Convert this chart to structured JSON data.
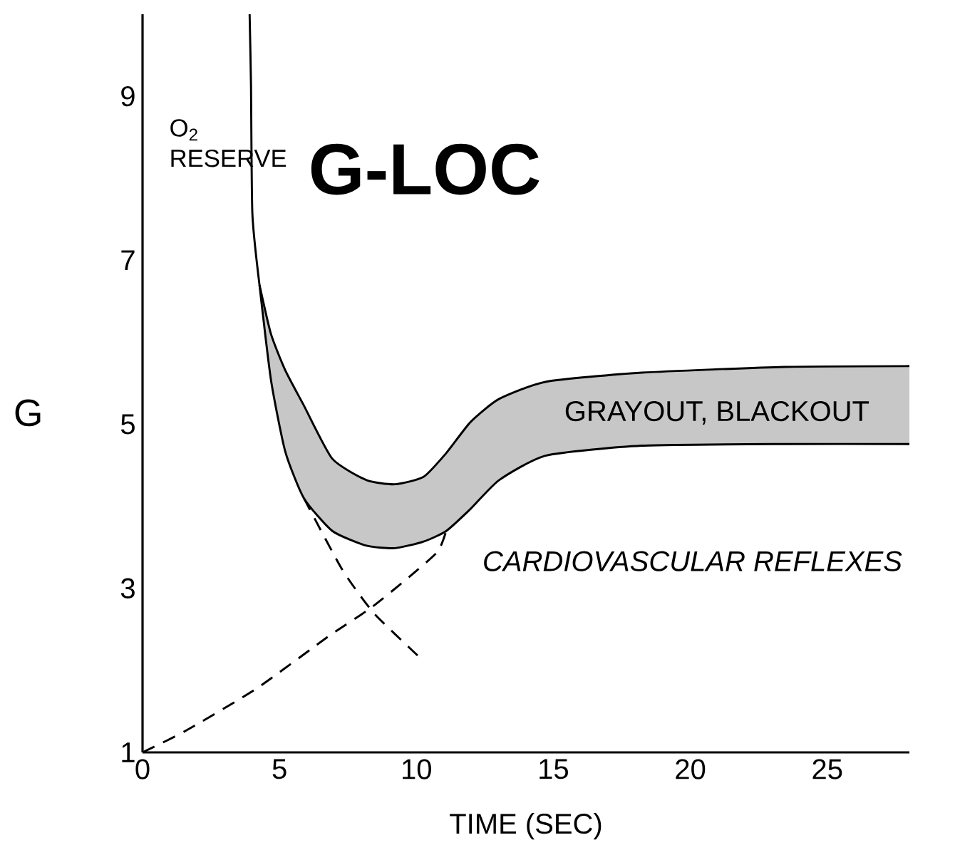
{
  "chart_data": {
    "type": "line",
    "xlabel": "TIME (SEC)",
    "ylabel": "G",
    "xlim": [
      0,
      28
    ],
    "ylim": [
      1,
      10
    ],
    "xticks": [
      0,
      5,
      10,
      15,
      20,
      25
    ],
    "yticks": [
      1,
      3,
      5,
      7,
      9
    ],
    "marker": "none",
    "grid": false,
    "series": [
      {
        "color": "#000000",
        "line_style": "solid",
        "x": [
          3.91,
          3.96,
          4.01,
          4.27
        ],
        "values": [
          10.0,
          9.14,
          7.57,
          6.7
        ]
      },
      {
        "color": "#000000",
        "line_style": "solid",
        "x": [
          4.27,
          4.69,
          5.21,
          5.89,
          6.93,
          8.18,
          9.22,
          10.26,
          11.09,
          11.98,
          13.02,
          14.74,
          18.23,
          23.44,
          28.0
        ],
        "values": [
          6.7,
          6.1,
          5.66,
          5.23,
          4.58,
          4.32,
          4.27,
          4.36,
          4.65,
          5.03,
          5.31,
          5.52,
          5.63,
          5.7,
          5.71
        ],
        "upper": [
          6.7,
          6.1,
          5.66,
          5.23,
          4.58,
          4.32,
          4.27,
          4.36,
          4.65,
          5.03,
          5.31,
          5.52,
          5.63,
          5.7,
          5.71
        ],
        "lower": [
          6.7,
          5.54,
          4.67,
          4.1,
          3.7,
          3.52,
          3.49,
          3.57,
          3.7,
          3.97,
          4.32,
          4.62,
          4.74,
          4.76,
          4.76
        ]
      },
      {
        "color": "#000000",
        "line_style": "solid",
        "x": [
          4.27,
          4.69,
          5.21,
          5.89,
          6.93,
          8.18,
          9.22,
          10.26,
          11.09,
          11.98,
          13.02,
          14.74,
          18.23,
          23.44,
          28.0
        ],
        "values": [
          6.7,
          5.54,
          4.67,
          4.1,
          3.7,
          3.52,
          3.49,
          3.57,
          3.7,
          3.97,
          4.32,
          4.62,
          4.74,
          4.76,
          4.76
        ]
      },
      {
        "color": "#000000",
        "line_style": "dashed",
        "x": [
          5.89,
          7.29,
          8.44,
          10.05
        ],
        "values": [
          4.1,
          3.23,
          2.7,
          2.18
        ]
      },
      {
        "color": "#000000",
        "line_style": "dashed",
        "x": [
          0,
          1.56,
          4.17,
          6.77,
          8.33,
          9.74,
          10.78,
          11.09
        ],
        "values": [
          1.0,
          1.26,
          1.78,
          2.41,
          2.76,
          3.14,
          3.45,
          3.7
        ]
      }
    ],
    "annotations": [
      "O$_{2}$ RESERVE",
      "G-LOC",
      "GRAYOUT, BLACKOUT",
      "CARDIOVASCULAR REFLEXES"
    ]
  }
}
